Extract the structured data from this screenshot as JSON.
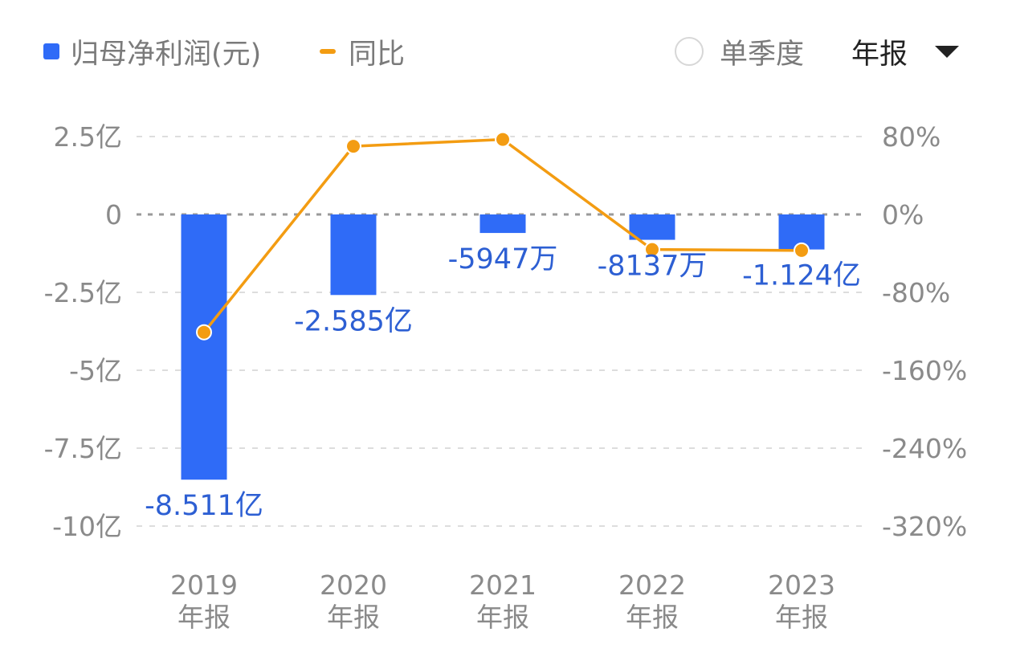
{
  "legend": {
    "bar_label": "归母净利润(元)",
    "line_label": "同比"
  },
  "controls": {
    "single_quarter_label": "单季度",
    "period_select_value": "年报"
  },
  "colors": {
    "bar": "#2f6bf7",
    "line": "#f39c12",
    "value_label": "#2d5fd3",
    "grid": "#dddddd",
    "zero_line": "#9a9a9a",
    "tick": "#8a8a8a"
  },
  "chart_data": {
    "type": "bar",
    "title": "",
    "categories": [
      {
        "year": "2019",
        "period": "年报"
      },
      {
        "year": "2020",
        "period": "年报"
      },
      {
        "year": "2021",
        "period": "年报"
      },
      {
        "year": "2022",
        "period": "年报"
      },
      {
        "year": "2023",
        "period": "年报"
      }
    ],
    "series": [
      {
        "name": "归母净利润(元)",
        "type": "bar",
        "axis": "left",
        "values": [
          -851100000,
          -258500000,
          -59470000,
          -81370000,
          -112400000
        ],
        "labels": [
          "-8.511亿",
          "-2.585亿",
          "-5947万",
          "-8137万",
          "-1.124亿"
        ]
      },
      {
        "name": "同比",
        "type": "line",
        "axis": "right",
        "values": [
          -121,
          70,
          77,
          -36,
          -37
        ]
      }
    ],
    "left_axis": {
      "ylim": [
        -1000000000,
        250000000
      ],
      "ticks": [
        250000000,
        0,
        -250000000,
        -500000000,
        -750000000,
        -1000000000
      ],
      "tick_labels": [
        "2.5亿",
        "0",
        "-2.5亿",
        "-5亿",
        "-7.5亿",
        "-10亿"
      ]
    },
    "right_axis": {
      "ylim": [
        -320,
        80
      ],
      "ticks": [
        80,
        0,
        -80,
        -160,
        -240,
        -320
      ],
      "tick_labels": [
        "80%",
        "0%",
        "-80%",
        "-160%",
        "-240%",
        "-320%"
      ]
    },
    "grid": true,
    "legend_position": "top-left"
  }
}
